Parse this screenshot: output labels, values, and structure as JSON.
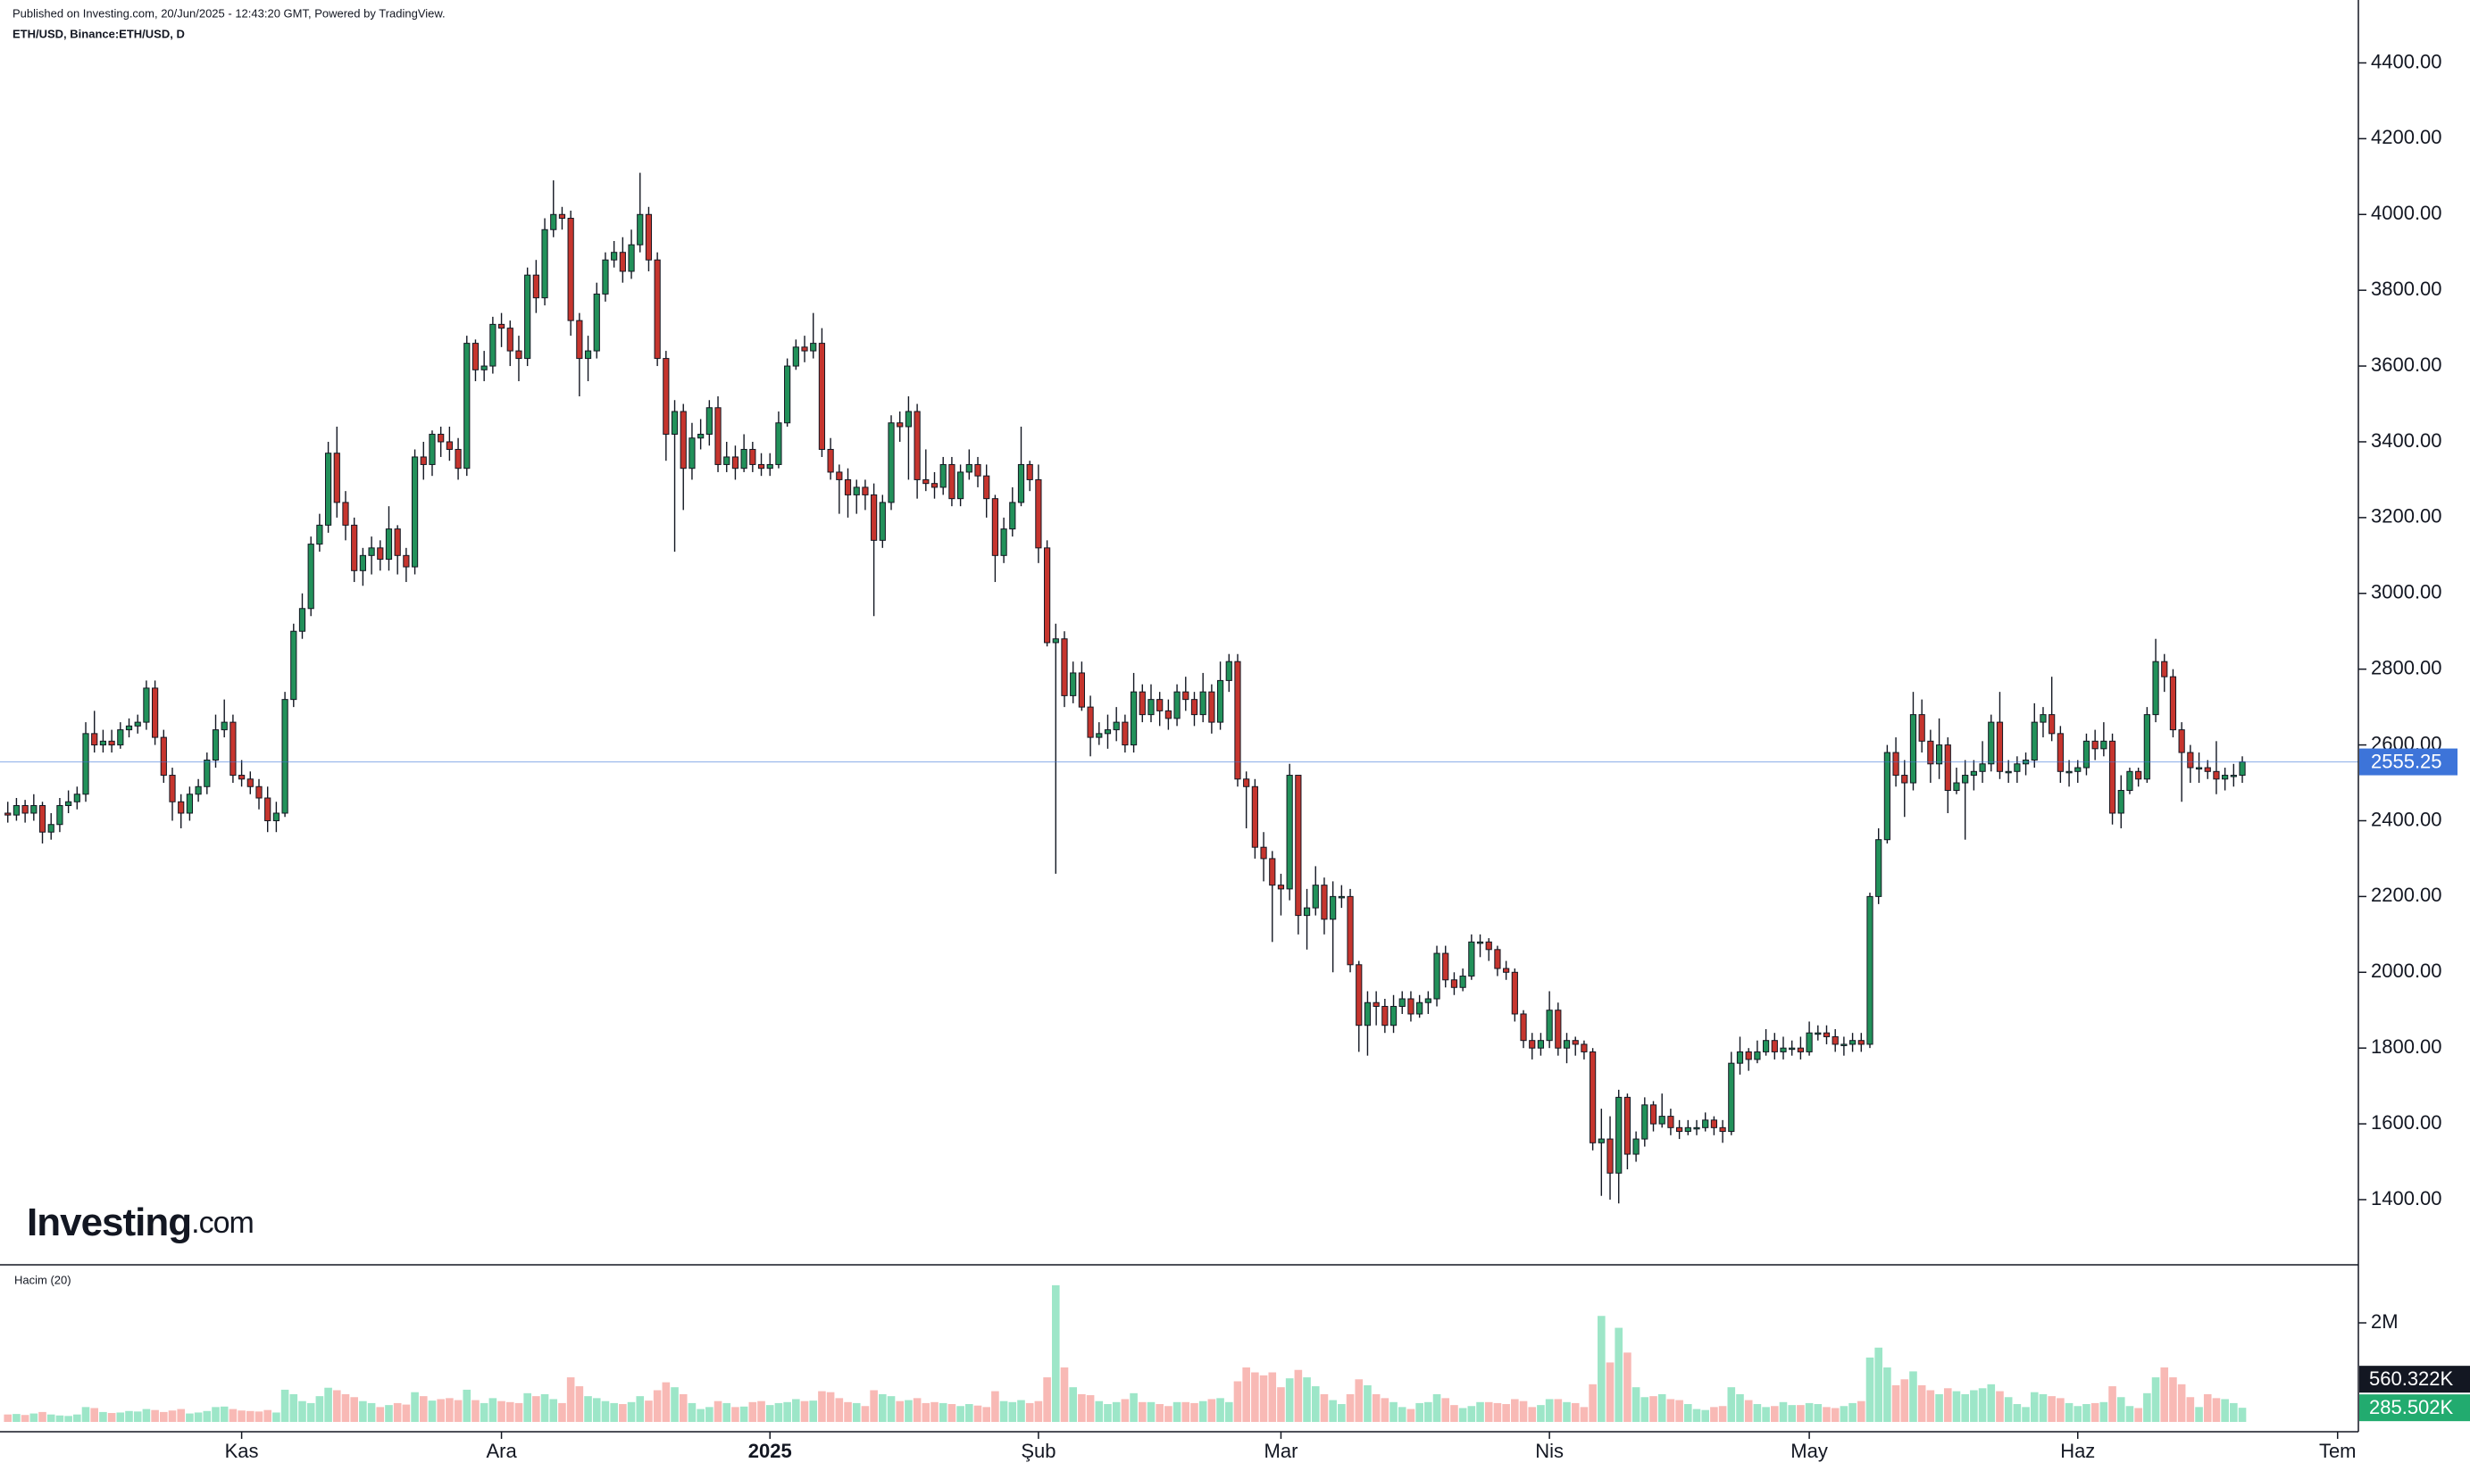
{
  "source": "Published on Investing.com, 20/Jun/2025 - 12:43:20 GMT, Powered by TradingView.",
  "logo": {
    "name": "Investing",
    "suffix": ".com"
  },
  "chart_data": {
    "type": "candlestick",
    "title": "ETH/USD, Binance:ETH/USD, D",
    "up_color": "#22915a",
    "down_color": "#c6352e",
    "last_price_color": "#3d74d9",
    "open": [
      2420,
      2415,
      2440,
      2420,
      2440,
      2370,
      2390,
      2440,
      2450,
      2470,
      2630,
      2600,
      2610,
      2600,
      2640,
      2650,
      2660,
      2750,
      2620,
      2520,
      2450,
      2420,
      2470,
      2490,
      2560,
      2640,
      2660,
      2520,
      2510,
      2490,
      2460,
      2400,
      2420,
      2720,
      2900,
      2960,
      3130,
      3180,
      3370,
      3240,
      3180,
      3060,
      3100,
      3120,
      3090,
      3170,
      3100,
      3070,
      3360,
      3340,
      3420,
      3400,
      3380,
      3330,
      3660,
      3590,
      3600,
      3710,
      3700,
      3640,
      3620,
      3840,
      3780,
      3960,
      4000,
      3990,
      3720,
      3620,
      3640,
      3790,
      3880,
      3900,
      3850,
      3920,
      4000,
      3880,
      3620,
      3420,
      3480,
      3330,
      3410,
      3420,
      3490,
      3340,
      3360,
      3330,
      3380,
      3340,
      3330,
      3340,
      3450,
      3600,
      3650,
      3640,
      3660,
      3380,
      3320,
      3300,
      3260,
      3280,
      3260,
      3140,
      3240,
      3450,
      3440,
      3480,
      3300,
      3290,
      3280,
      3340,
      3250,
      3320,
      3340,
      3310,
      3250,
      3100,
      3170,
      3240,
      3340,
      3300,
      3120,
      2870,
      2880,
      2730,
      2790,
      2700,
      2620,
      2630,
      2640,
      2660,
      2600,
      2740,
      2680,
      2720,
      2690,
      2670,
      2740,
      2720,
      2680,
      2740,
      2660,
      2770,
      2820,
      2510,
      2490,
      2330,
      2300,
      2230,
      2220,
      2520,
      2150,
      2170,
      2230,
      2140,
      2200,
      2200,
      2020,
      1860,
      1920,
      1910,
      1860,
      1910,
      1930,
      1890,
      1920,
      1930,
      2050,
      1980,
      1960,
      1990,
      2080,
      2080,
      2060,
      2010,
      2000,
      1890,
      1820,
      1800,
      1820,
      1900,
      1800,
      1820,
      1810,
      1790,
      1550,
      1560,
      1470,
      1670,
      1520,
      1560,
      1650,
      1600,
      1620,
      1590,
      1580,
      1590,
      1590,
      1610,
      1590,
      1580,
      1760,
      1790,
      1770,
      1790,
      1820,
      1790,
      1800,
      1800,
      1790,
      1840,
      1840,
      1830,
      1810,
      1810,
      1820,
      1810,
      2200,
      2350,
      2580,
      2520,
      2500,
      2680,
      2610,
      2550,
      2600,
      2480,
      2500,
      2520,
      2530,
      2550,
      2660,
      2530,
      2530,
      2550,
      2560,
      2660,
      2680,
      2630,
      2530,
      2530,
      2540,
      2610,
      2590,
      2610,
      2420,
      2480,
      2530,
      2510,
      2680,
      2820,
      2780,
      2640,
      2580,
      2540,
      2540,
      2530,
      2510,
      2520,
      2520
    ],
    "high": [
      2450,
      2460,
      2455,
      2470,
      2450,
      2420,
      2460,
      2480,
      2490,
      2660,
      2690,
      2640,
      2640,
      2660,
      2670,
      2680,
      2770,
      2770,
      2640,
      2540,
      2470,
      2490,
      2510,
      2580,
      2680,
      2720,
      2680,
      2560,
      2530,
      2510,
      2490,
      2450,
      2740,
      2920,
      3000,
      3150,
      3210,
      3400,
      3440,
      3270,
      3200,
      3120,
      3150,
      3140,
      3230,
      3180,
      3120,
      3380,
      3400,
      3430,
      3440,
      3440,
      3410,
      3680,
      3670,
      3640,
      3730,
      3740,
      3720,
      3680,
      3860,
      3880,
      3990,
      4090,
      4020,
      4010,
      3740,
      3680,
      3820,
      3900,
      3930,
      3940,
      3960,
      4110,
      4020,
      3900,
      3640,
      3510,
      3500,
      3450,
      3460,
      3510,
      3520,
      3400,
      3390,
      3420,
      3400,
      3370,
      3370,
      3480,
      3620,
      3670,
      3680,
      3740,
      3700,
      3410,
      3340,
      3330,
      3300,
      3300,
      3290,
      3260,
      3470,
      3480,
      3520,
      3500,
      3380,
      3320,
      3360,
      3360,
      3340,
      3380,
      3360,
      3340,
      3260,
      3200,
      3280,
      3440,
      3350,
      3340,
      3140,
      2920,
      2900,
      2820,
      2820,
      2730,
      2660,
      2680,
      2700,
      2680,
      2790,
      2760,
      2760,
      2740,
      2720,
      2760,
      2780,
      2740,
      2790,
      2760,
      2820,
      2840,
      2840,
      2530,
      2510,
      2370,
      2320,
      2260,
      2550,
      2520,
      2220,
      2280,
      2250,
      2240,
      2230,
      2220,
      2030,
      1950,
      1950,
      1930,
      1940,
      1950,
      1950,
      1940,
      1950,
      2070,
      2070,
      2000,
      2010,
      2100,
      2100,
      2090,
      2070,
      2030,
      2010,
      1900,
      1840,
      1840,
      1950,
      1920,
      1840,
      1830,
      1820,
      1800,
      1640,
      1620,
      1690,
      1680,
      1580,
      1670,
      1660,
      1680,
      1640,
      1610,
      1610,
      1610,
      1630,
      1620,
      1610,
      1790,
      1830,
      1800,
      1820,
      1850,
      1840,
      1830,
      1820,
      1830,
      1870,
      1860,
      1860,
      1850,
      1830,
      1840,
      1840,
      2210,
      2380,
      2600,
      2620,
      2560,
      2740,
      2720,
      2640,
      2670,
      2620,
      2540,
      2560,
      2560,
      2610,
      2680,
      2740,
      2560,
      2570,
      2580,
      2710,
      2700,
      2780,
      2650,
      2560,
      2560,
      2630,
      2640,
      2660,
      2630,
      2520,
      2540,
      2540,
      2700,
      2880,
      2840,
      2800,
      2660,
      2600,
      2580,
      2560,
      2610,
      2540,
      2550,
      2570
    ],
    "low": [
      2395,
      2400,
      2395,
      2400,
      2340,
      2350,
      2370,
      2420,
      2430,
      2450,
      2580,
      2580,
      2580,
      2590,
      2620,
      2630,
      2640,
      2600,
      2500,
      2400,
      2380,
      2400,
      2450,
      2470,
      2540,
      2620,
      2500,
      2490,
      2470,
      2430,
      2370,
      2370,
      2410,
      2700,
      2880,
      2940,
      3110,
      3160,
      3200,
      3140,
      3030,
      3020,
      3050,
      3060,
      3060,
      3050,
      3030,
      3050,
      3300,
      3310,
      3360,
      3350,
      3300,
      3310,
      3560,
      3560,
      3580,
      3650,
      3600,
      3560,
      3600,
      3740,
      3760,
      3940,
      3960,
      3680,
      3520,
      3560,
      3620,
      3770,
      3860,
      3820,
      3830,
      3900,
      3850,
      3600,
      3350,
      3110,
      3220,
      3300,
      3380,
      3390,
      3320,
      3320,
      3300,
      3320,
      3320,
      3310,
      3310,
      3330,
      3440,
      3590,
      3610,
      3620,
      3360,
      3300,
      3210,
      3200,
      3210,
      3220,
      2940,
      3120,
      3220,
      3400,
      3300,
      3250,
      3270,
      3250,
      3260,
      3230,
      3230,
      3300,
      3280,
      3200,
      3030,
      3080,
      3150,
      3230,
      3270,
      3080,
      2860,
      2260,
      2700,
      2710,
      2690,
      2570,
      2600,
      2590,
      2610,
      2580,
      2580,
      2660,
      2660,
      2650,
      2640,
      2650,
      2690,
      2650,
      2660,
      2630,
      2640,
      2740,
      2490,
      2380,
      2300,
      2240,
      2080,
      2150,
      2190,
      2100,
      2060,
      2150,
      2100,
      2000,
      2170,
      2000,
      1790,
      1780,
      1860,
      1840,
      1840,
      1890,
      1870,
      1880,
      1890,
      1910,
      1960,
      1940,
      1950,
      1980,
      2040,
      2030,
      1990,
      1980,
      1870,
      1800,
      1770,
      1780,
      1800,
      1780,
      1760,
      1780,
      1770,
      1530,
      1410,
      1400,
      1390,
      1480,
      1500,
      1540,
      1580,
      1590,
      1570,
      1560,
      1570,
      1570,
      1580,
      1570,
      1550,
      1570,
      1730,
      1740,
      1760,
      1780,
      1770,
      1770,
      1780,
      1770,
      1780,
      1820,
      1810,
      1790,
      1780,
      1790,
      1790,
      1800,
      2180,
      2340,
      2490,
      2410,
      2480,
      2580,
      2500,
      2510,
      2420,
      2470,
      2350,
      2480,
      2500,
      2530,
      2510,
      2500,
      2500,
      2520,
      2540,
      2620,
      2610,
      2500,
      2490,
      2500,
      2520,
      2560,
      2570,
      2390,
      2380,
      2470,
      2490,
      2500,
      2660,
      2740,
      2620,
      2450,
      2500,
      2500,
      2510,
      2470,
      2480,
      2490,
      2500
    ],
    "close": [
      2415,
      2440,
      2420,
      2440,
      2370,
      2390,
      2440,
      2450,
      2470,
      2630,
      2600,
      2610,
      2600,
      2640,
      2650,
      2660,
      2750,
      2620,
      2520,
      2450,
      2420,
      2470,
      2490,
      2560,
      2640,
      2660,
      2520,
      2510,
      2490,
      2460,
      2400,
      2420,
      2720,
      2900,
      2960,
      3130,
      3180,
      3370,
      3240,
      3180,
      3060,
      3100,
      3120,
      3090,
      3170,
      3100,
      3070,
      3360,
      3340,
      3420,
      3400,
      3380,
      3330,
      3660,
      3590,
      3600,
      3710,
      3700,
      3640,
      3620,
      3840,
      3780,
      3960,
      4000,
      3990,
      3720,
      3620,
      3640,
      3790,
      3880,
      3900,
      3850,
      3920,
      4000,
      3880,
      3620,
      3420,
      3480,
      3330,
      3410,
      3420,
      3490,
      3340,
      3360,
      3330,
      3380,
      3340,
      3330,
      3340,
      3450,
      3600,
      3650,
      3640,
      3660,
      3380,
      3320,
      3300,
      3260,
      3280,
      3260,
      3140,
      3240,
      3450,
      3440,
      3480,
      3300,
      3290,
      3280,
      3340,
      3250,
      3320,
      3340,
      3310,
      3250,
      3100,
      3170,
      3240,
      3340,
      3300,
      3120,
      2870,
      2880,
      2730,
      2790,
      2700,
      2620,
      2630,
      2640,
      2660,
      2600,
      2740,
      2680,
      2720,
      2690,
      2670,
      2740,
      2720,
      2680,
      2740,
      2660,
      2770,
      2820,
      2510,
      2490,
      2330,
      2300,
      2230,
      2220,
      2520,
      2150,
      2170,
      2230,
      2140,
      2200,
      2200,
      2020,
      1860,
      1920,
      1910,
      1860,
      1910,
      1930,
      1890,
      1920,
      1930,
      2050,
      1980,
      1960,
      1990,
      2080,
      2080,
      2060,
      2010,
      2000,
      1890,
      1820,
      1800,
      1820,
      1900,
      1800,
      1820,
      1810,
      1790,
      1550,
      1560,
      1470,
      1670,
      1520,
      1560,
      1650,
      1600,
      1620,
      1590,
      1580,
      1590,
      1590,
      1610,
      1590,
      1580,
      1760,
      1790,
      1770,
      1790,
      1820,
      1790,
      1800,
      1800,
      1790,
      1840,
      1840,
      1830,
      1810,
      1810,
      1820,
      1810,
      2200,
      2350,
      2580,
      2520,
      2500,
      2680,
      2610,
      2550,
      2600,
      2480,
      2500,
      2520,
      2530,
      2550,
      2660,
      2530,
      2530,
      2550,
      2560,
      2660,
      2680,
      2630,
      2530,
      2530,
      2540,
      2610,
      2590,
      2610,
      2420,
      2480,
      2530,
      2510,
      2680,
      2820,
      2780,
      2640,
      2580,
      2540,
      2540,
      2530,
      2510,
      2520,
      2520,
      2555.25
    ],
    "xlim": [
      -0.9,
      271.4
    ],
    "xticks": [
      {
        "value": 27,
        "label": "Kas"
      },
      {
        "value": 57,
        "label": "Ara"
      },
      {
        "value": 88,
        "label": "2025"
      },
      {
        "value": 119,
        "label": "Şub"
      },
      {
        "value": 147,
        "label": "Mar"
      },
      {
        "value": 178,
        "label": "Nis"
      },
      {
        "value": 208,
        "label": "May"
      },
      {
        "value": 239,
        "label": "Haz"
      },
      {
        "value": 269,
        "label": "Tem"
      }
    ],
    "ylim": [
      1228,
      4566
    ],
    "yticks": [
      {
        "value": 1400,
        "label": "1400.00"
      },
      {
        "value": 1600,
        "label": "1600.00"
      },
      {
        "value": 1800,
        "label": "1800.00"
      },
      {
        "value": 2000,
        "label": "2000.00"
      },
      {
        "value": 2200,
        "label": "2200.00"
      },
      {
        "value": 2400,
        "label": "2400.00"
      },
      {
        "value": 2600,
        "label": "2600.00"
      },
      {
        "value": 2800,
        "label": "2800.00"
      },
      {
        "value": 3000,
        "label": "3000.00"
      },
      {
        "value": 3200,
        "label": "3200.00"
      },
      {
        "value": 3400,
        "label": "3400.00"
      },
      {
        "value": 3600,
        "label": "3600.00"
      },
      {
        "value": 3800,
        "label": "3800.00"
      },
      {
        "value": 4000,
        "label": "4000.00"
      },
      {
        "value": 4200,
        "label": "4200.00"
      },
      {
        "value": 4400,
        "label": "4400.00"
      }
    ],
    "volume": {
      "name": "Hacim (20)",
      "up_color": "#9de6c8",
      "down_color": "#f8b9b5",
      "values": [
        150000,
        160000,
        140000,
        170000,
        200000,
        150000,
        130000,
        120000,
        150000,
        300000,
        280000,
        200000,
        180000,
        190000,
        220000,
        210000,
        260000,
        240000,
        200000,
        230000,
        260000,
        170000,
        190000,
        220000,
        300000,
        310000,
        260000,
        230000,
        220000,
        210000,
        240000,
        190000,
        650000,
        560000,
        420000,
        380000,
        520000,
        690000,
        640000,
        560000,
        500000,
        420000,
        380000,
        300000,
        340000,
        380000,
        350000,
        600000,
        520000,
        430000,
        460000,
        480000,
        440000,
        650000,
        440000,
        380000,
        480000,
        420000,
        400000,
        380000,
        580000,
        520000,
        560000,
        460000,
        380000,
        900000,
        720000,
        520000,
        480000,
        420000,
        380000,
        360000,
        400000,
        520000,
        430000,
        640000,
        800000,
        700000,
        560000,
        380000,
        260000,
        300000,
        420000,
        380000,
        300000,
        310000,
        400000,
        420000,
        340000,
        380000,
        400000,
        460000,
        420000,
        430000,
        620000,
        600000,
        480000,
        400000,
        380000,
        320000,
        640000,
        560000,
        520000,
        420000,
        440000,
        480000,
        380000,
        400000,
        380000,
        360000,
        320000,
        360000,
        330000,
        300000,
        620000,
        420000,
        400000,
        440000,
        380000,
        420000,
        900000,
        2760000,
        1100000,
        700000,
        560000,
        540000,
        420000,
        360000,
        400000,
        460000,
        580000,
        400000,
        400000,
        360000,
        320000,
        400000,
        400000,
        380000,
        420000,
        460000,
        480000,
        400000,
        820000,
        1100000,
        1000000,
        940000,
        1000000,
        700000,
        880000,
        1050000,
        900000,
        720000,
        560000,
        440000,
        360000,
        560000,
        860000,
        740000,
        560000,
        480000,
        400000,
        300000,
        260000,
        380000,
        400000,
        560000,
        480000,
        340000,
        280000,
        320000,
        400000,
        400000,
        380000,
        360000,
        460000,
        420000,
        300000,
        340000,
        460000,
        460000,
        400000,
        380000,
        300000,
        760000,
        2140000,
        1200000,
        1900000,
        1400000,
        700000,
        500000,
        520000,
        560000,
        460000,
        440000,
        360000,
        260000,
        240000,
        300000,
        320000,
        700000,
        560000,
        440000,
        360000,
        300000,
        320000,
        400000,
        340000,
        340000,
        380000,
        360000,
        300000,
        280000,
        320000,
        380000,
        420000,
        1300000,
        1500000,
        1100000,
        740000,
        860000,
        1020000,
        740000,
        640000,
        560000,
        680000,
        620000,
        560000,
        640000,
        680000,
        760000,
        620000,
        500000,
        360000,
        300000,
        600000,
        560000,
        520000,
        480000,
        380000,
        320000,
        360000,
        380000,
        400000,
        720000,
        500000,
        320000,
        280000,
        580000,
        900000,
        1100000,
        900000,
        760000,
        500000,
        300000,
        560000,
        480000,
        460000,
        380000,
        285502
      ],
      "last_label": "285.502K",
      "ma_last": {
        "value": 560322,
        "label": "560.322K"
      },
      "ylim": [
        0,
        3100000
      ],
      "yticks": [
        {
          "value": 2000000,
          "label": "2M"
        }
      ]
    }
  }
}
